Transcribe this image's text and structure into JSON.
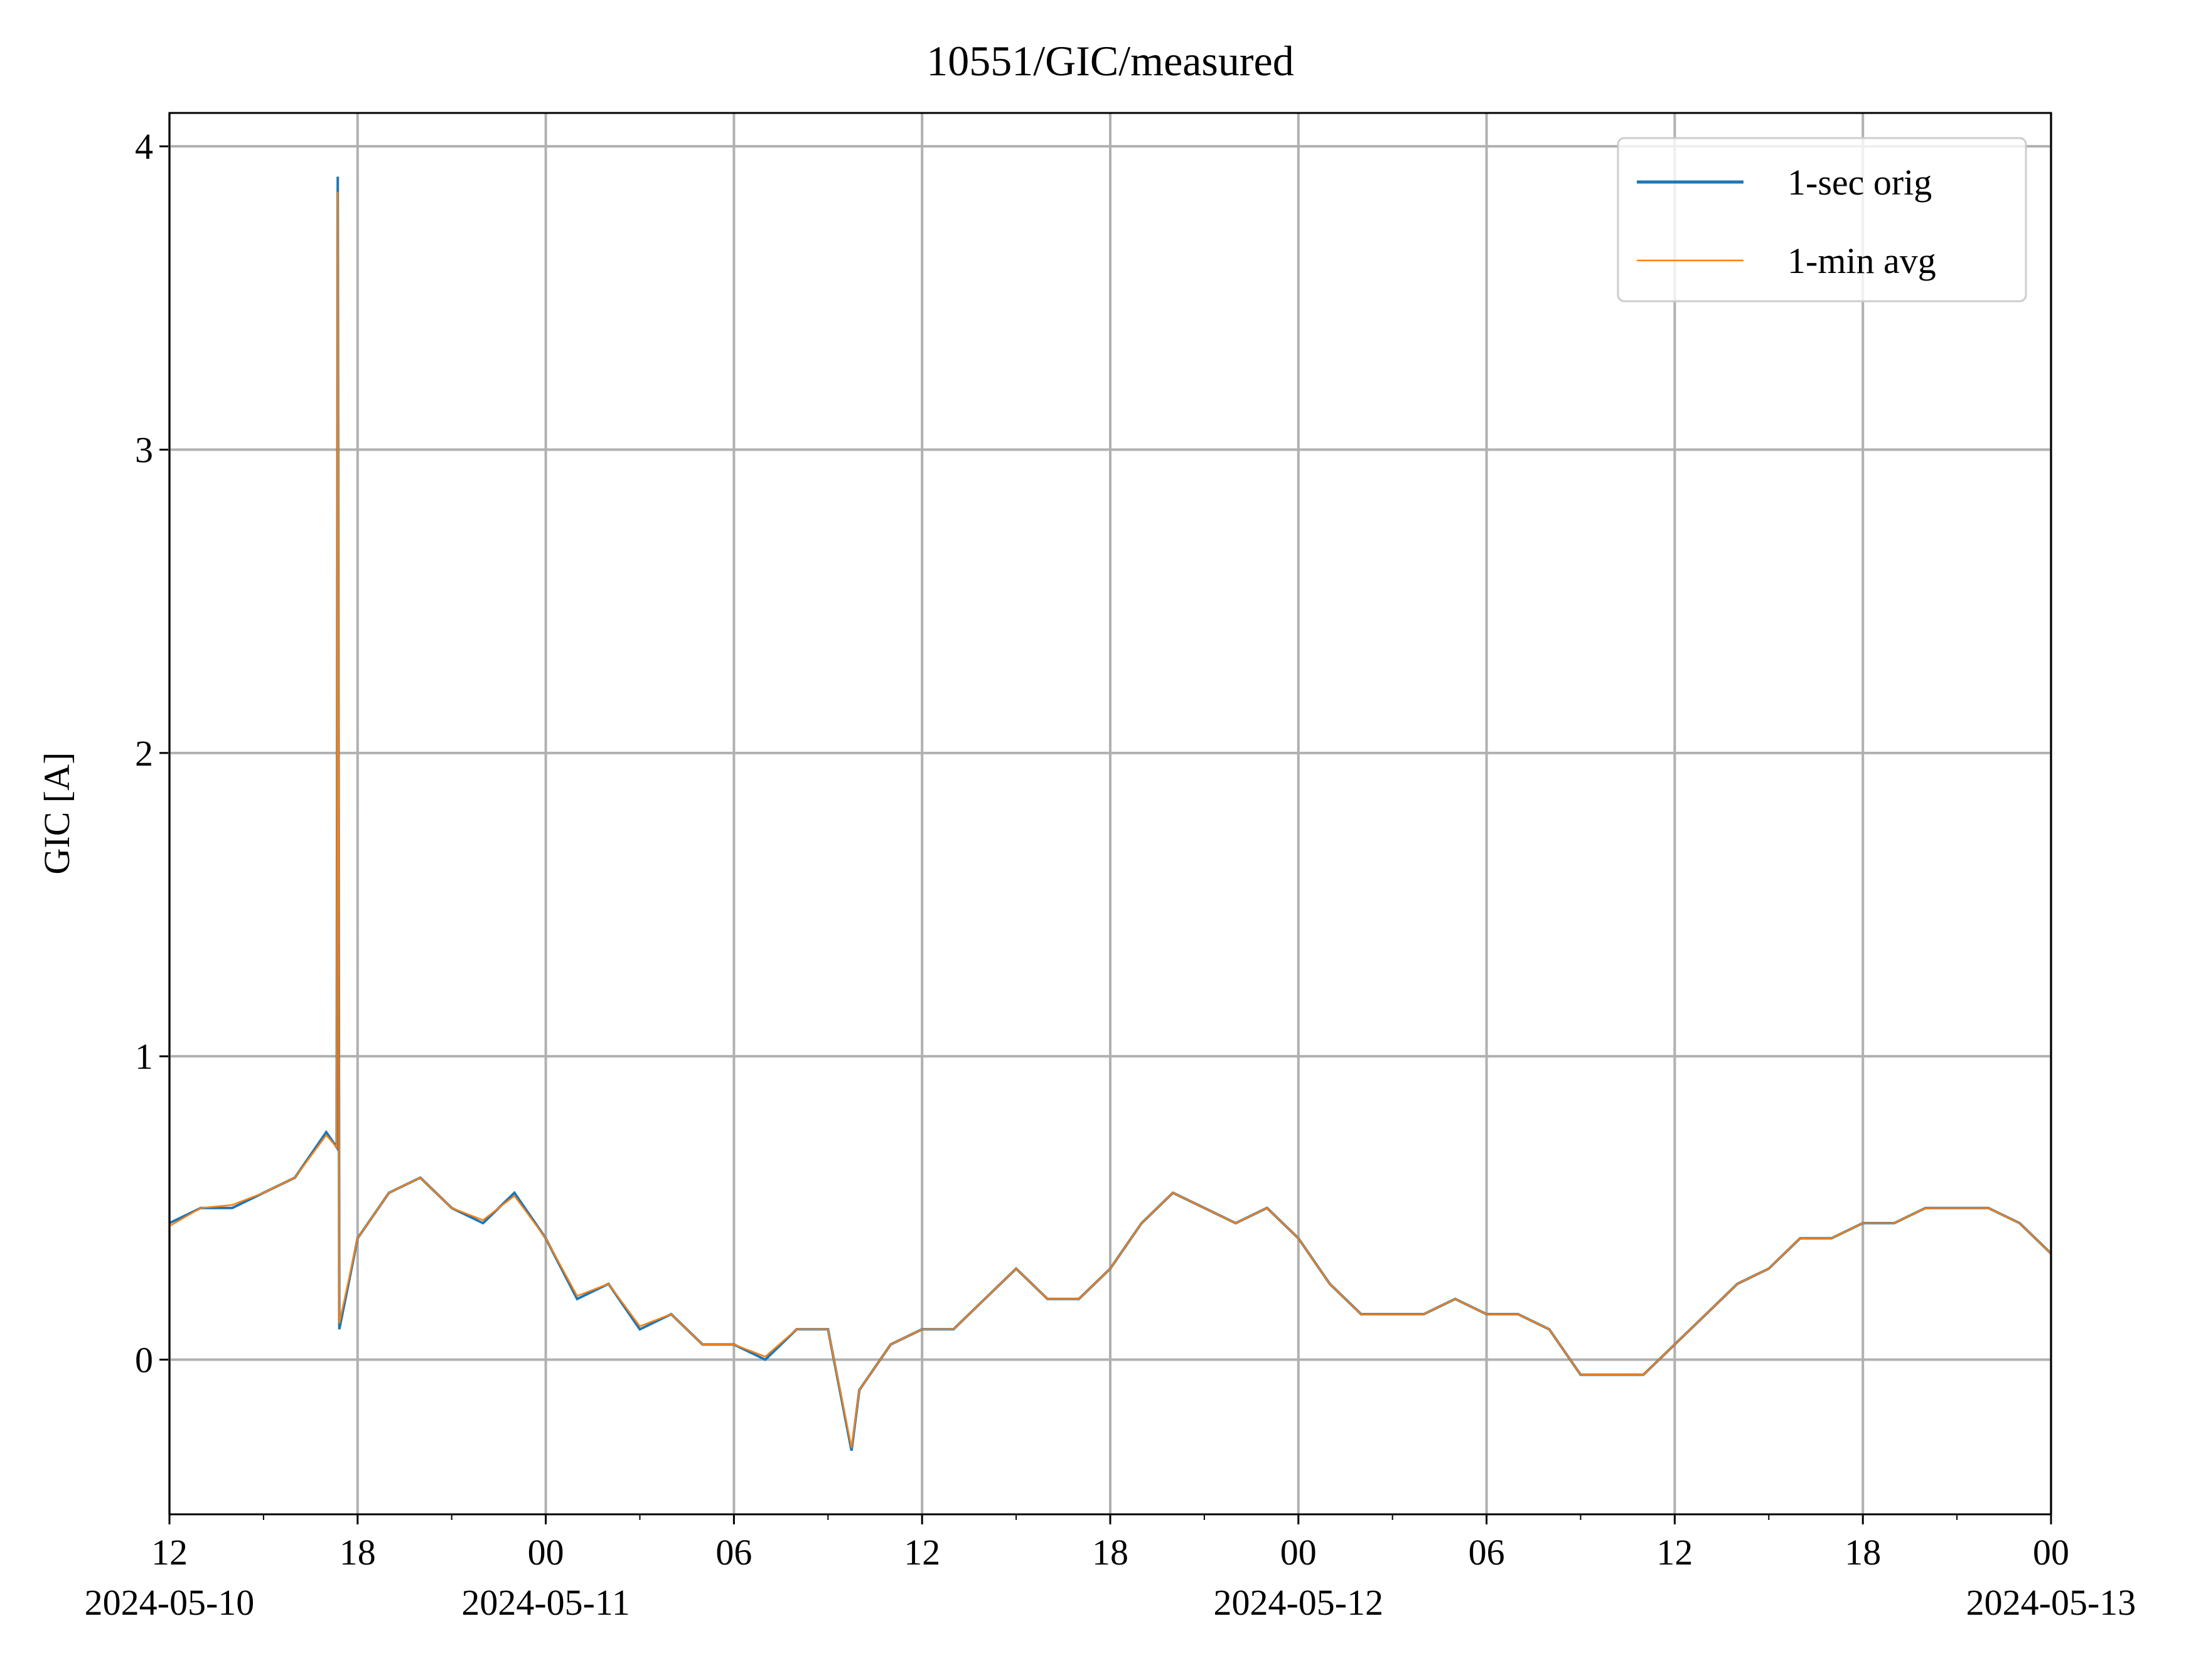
{
  "chart_data": {
    "type": "line",
    "title": "10551/GIC/measured",
    "ylabel": "GIC [A]",
    "x": [
      "2024-05-10 12:00",
      "2024-05-10 13:00",
      "2024-05-10 14:00",
      "2024-05-10 15:00",
      "2024-05-10 16:00",
      "2024-05-10 17:00",
      "2024-05-10 17:20",
      "2024-05-10 17:22",
      "2024-05-10 17:25",
      "2024-05-10 18:00",
      "2024-05-10 19:00",
      "2024-05-10 20:00",
      "2024-05-10 21:00",
      "2024-05-10 22:00",
      "2024-05-10 23:00",
      "2024-05-11 00:00",
      "2024-05-11 01:00",
      "2024-05-11 02:00",
      "2024-05-11 03:00",
      "2024-05-11 04:00",
      "2024-05-11 05:00",
      "2024-05-11 06:00",
      "2024-05-11 07:00",
      "2024-05-11 08:00",
      "2024-05-11 09:00",
      "2024-05-11 09:45",
      "2024-05-11 10:00",
      "2024-05-11 11:00",
      "2024-05-11 12:00",
      "2024-05-11 13:00",
      "2024-05-11 14:00",
      "2024-05-11 15:00",
      "2024-05-11 16:00",
      "2024-05-11 17:00",
      "2024-05-11 18:00",
      "2024-05-11 19:00",
      "2024-05-11 20:00",
      "2024-05-11 21:00",
      "2024-05-11 22:00",
      "2024-05-11 23:00",
      "2024-05-12 00:00",
      "2024-05-12 01:00",
      "2024-05-12 02:00",
      "2024-05-12 03:00",
      "2024-05-12 04:00",
      "2024-05-12 05:00",
      "2024-05-12 06:00",
      "2024-05-12 07:00",
      "2024-05-12 08:00",
      "2024-05-12 09:00",
      "2024-05-12 10:00",
      "2024-05-12 11:00",
      "2024-05-12 12:00",
      "2024-05-12 13:00",
      "2024-05-12 14:00",
      "2024-05-12 15:00",
      "2024-05-12 16:00",
      "2024-05-12 17:00",
      "2024-05-12 18:00",
      "2024-05-12 19:00",
      "2024-05-12 20:00",
      "2024-05-12 21:00",
      "2024-05-12 22:00",
      "2024-05-12 23:00",
      "2024-05-13 00:00"
    ],
    "series": [
      {
        "name": "1-sec orig",
        "color": "#1f77b4",
        "values": [
          0.45,
          0.5,
          0.5,
          0.55,
          0.6,
          0.75,
          0.7,
          3.9,
          0.1,
          0.4,
          0.55,
          0.6,
          0.5,
          0.45,
          0.55,
          0.4,
          0.2,
          0.25,
          0.1,
          0.15,
          0.05,
          0.05,
          0.0,
          0.1,
          0.1,
          -0.3,
          -0.1,
          0.05,
          0.1,
          0.1,
          0.2,
          0.3,
          0.2,
          0.2,
          0.3,
          0.45,
          0.55,
          0.5,
          0.45,
          0.5,
          0.4,
          0.25,
          0.15,
          0.15,
          0.15,
          0.2,
          0.15,
          0.15,
          0.1,
          -0.05,
          -0.05,
          -0.05,
          0.05,
          0.15,
          0.25,
          0.3,
          0.4,
          0.4,
          0.45,
          0.45,
          0.5,
          0.5,
          0.5,
          0.45,
          0.35
        ]
      },
      {
        "name": "1-min avg",
        "color": "#ff7f0e",
        "values": [
          0.44,
          0.5,
          0.51,
          0.55,
          0.6,
          0.74,
          0.7,
          3.85,
          0.12,
          0.4,
          0.55,
          0.6,
          0.5,
          0.46,
          0.54,
          0.4,
          0.21,
          0.25,
          0.11,
          0.15,
          0.05,
          0.05,
          0.01,
          0.1,
          0.1,
          -0.29,
          -0.1,
          0.05,
          0.1,
          0.1,
          0.2,
          0.3,
          0.2,
          0.2,
          0.3,
          0.45,
          0.55,
          0.5,
          0.45,
          0.5,
          0.4,
          0.25,
          0.15,
          0.15,
          0.15,
          0.2,
          0.15,
          0.15,
          0.1,
          -0.05,
          -0.05,
          -0.05,
          0.05,
          0.15,
          0.25,
          0.3,
          0.4,
          0.4,
          0.45,
          0.45,
          0.5,
          0.5,
          0.5,
          0.45,
          0.35
        ]
      }
    ],
    "xlim": [
      "2024-05-10 12:00",
      "2024-05-13 00:00"
    ],
    "xticks": [
      {
        "value": "2024-05-10 12:00",
        "label": "12",
        "date": "2024-05-10"
      },
      {
        "value": "2024-05-10 18:00",
        "label": "18"
      },
      {
        "value": "2024-05-11 00:00",
        "label": "00",
        "date": "2024-05-11"
      },
      {
        "value": "2024-05-11 06:00",
        "label": "06"
      },
      {
        "value": "2024-05-11 12:00",
        "label": "12"
      },
      {
        "value": "2024-05-11 18:00",
        "label": "18"
      },
      {
        "value": "2024-05-12 00:00",
        "label": "00",
        "date": "2024-05-12"
      },
      {
        "value": "2024-05-12 06:00",
        "label": "06"
      },
      {
        "value": "2024-05-12 12:00",
        "label": "12"
      },
      {
        "value": "2024-05-12 18:00",
        "label": "18"
      },
      {
        "value": "2024-05-13 00:00",
        "label": "00",
        "date": "2024-05-13"
      }
    ],
    "xminorticks": [
      "2024-05-10 15:00",
      "2024-05-10 21:00",
      "2024-05-11 03:00",
      "2024-05-11 09:00",
      "2024-05-11 15:00",
      "2024-05-11 21:00",
      "2024-05-12 03:00",
      "2024-05-12 09:00",
      "2024-05-12 15:00",
      "2024-05-12 21:00"
    ],
    "ylim": [
      -0.51,
      4.11
    ],
    "yticks": [
      0,
      1,
      2,
      3,
      4
    ],
    "grid": true,
    "legend": "upper right"
  }
}
